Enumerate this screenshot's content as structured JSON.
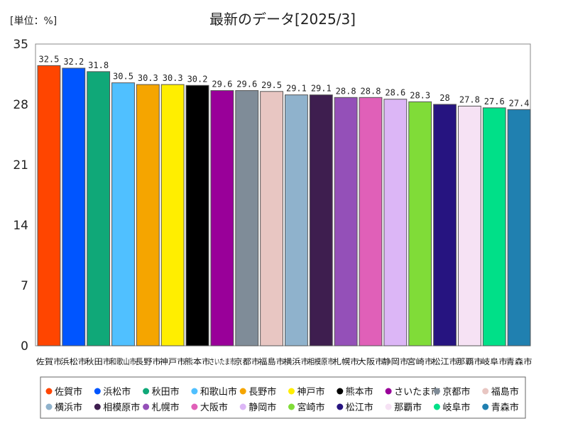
{
  "chart_data": {
    "type": "bar",
    "title": "最新のデータ[2025/3]",
    "unit_label": "[単位：%]",
    "ylim": [
      0,
      35
    ],
    "yticks": [
      0,
      7,
      14,
      21,
      28,
      35
    ],
    "grid": false,
    "legend_position": "bottom",
    "categories": [
      "佐賀市",
      "浜松市",
      "秋田市",
      "和歌山市",
      "長野市",
      "神戸市",
      "熊本市",
      "さいたま市",
      "京都市",
      "福島市",
      "横浜市",
      "相模原市",
      "札幌市",
      "大阪市",
      "静岡市",
      "宮崎市",
      "松江市",
      "那覇市",
      "岐阜市",
      "青森市"
    ],
    "values": [
      32.5,
      32.2,
      31.8,
      30.5,
      30.3,
      30.3,
      30.2,
      29.6,
      29.6,
      29.5,
      29.1,
      29.1,
      28.8,
      28.8,
      28.6,
      28.3,
      28,
      27.8,
      27.6,
      27.4
    ],
    "value_labels": [
      "32.5",
      "32.2",
      "31.8",
      "30.5",
      "30.3",
      "30.3",
      "30.2",
      "29.6",
      "29.6",
      "29.5",
      "29.1",
      "29.1",
      "28.8",
      "28.8",
      "28.6",
      "28.3",
      "28",
      "27.8",
      "27.6",
      "27.4"
    ],
    "colors": [
      "#ff4500",
      "#0055ff",
      "#10a878",
      "#50c0ff",
      "#f5a500",
      "#ffee00",
      "#000000",
      "#990099",
      "#7f8c98",
      "#e8c6c2",
      "#8fb2cc",
      "#3e1e4f",
      "#9450b8",
      "#e060b8",
      "#dcb6f6",
      "#80dc38",
      "#261480",
      "#f6e2f4",
      "#00e088",
      "#2080b0"
    ]
  }
}
